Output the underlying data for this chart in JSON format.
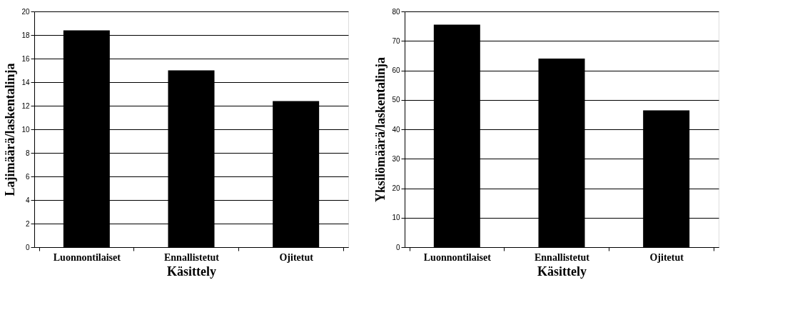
{
  "chart_data": [
    {
      "type": "bar",
      "categories": [
        "Luonnontilaiset",
        "Ennallistetut",
        "Ojitetut"
      ],
      "values": [
        18.4,
        15.0,
        12.4
      ],
      "color": "#000000",
      "xlabel": "Käsittely",
      "ylabel": "Lajimäärä/laskentalinja",
      "ylim": [
        0,
        20
      ],
      "yticks": [
        0,
        2,
        4,
        6,
        8,
        10,
        12,
        14,
        16,
        18,
        20
      ],
      "grid": "y"
    },
    {
      "type": "bar",
      "categories": [
        "Luonnontilaiset",
        "Ennallistetut",
        "Ojitetut"
      ],
      "values": [
        75.5,
        64,
        46.4
      ],
      "color": "#000000",
      "xlabel": "Käsittely",
      "ylabel": "Yksilömäärä/laskentalinja",
      "ylim": [
        0,
        80
      ],
      "yticks": [
        0,
        10,
        20,
        30,
        40,
        50,
        60,
        70,
        80
      ],
      "grid": "y"
    }
  ]
}
